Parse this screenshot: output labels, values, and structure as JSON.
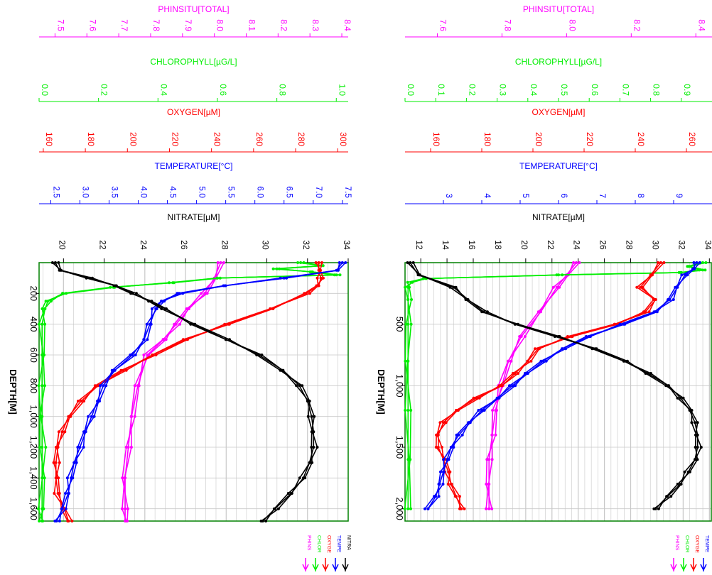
{
  "colors": {
    "phinsitu": "#ff00ff",
    "chlorophyll": "#00ee00",
    "oxygen": "#ff0000",
    "temperature": "#0000ff",
    "nitrate": "#000000",
    "frame": "#008000",
    "grid": "#c8c8c8"
  },
  "chart_data": [
    {
      "type": "line",
      "panel": "left",
      "depth_axis": {
        "label": "DEPTH[M]",
        "range": [
          0,
          1680
        ],
        "ticks": [
          200,
          400,
          600,
          800,
          1000,
          1200,
          1400,
          1600
        ],
        "tick_labels": [
          "200",
          "400",
          "600",
          "800",
          "1,000",
          "1,200",
          "1,400",
          "1,600"
        ],
        "inverted": true
      },
      "scales": [
        {
          "key": "phinsitu",
          "name": "PHINSITU[TOTAL]",
          "range": [
            7.45,
            8.42
          ],
          "ticks": [
            7.5,
            7.6,
            7.7,
            7.8,
            7.9,
            8.0,
            8.1,
            8.2,
            8.3,
            8.4
          ],
          "tick_labels": [
            "7.5",
            "7.6",
            "7.7",
            "7.8",
            "7.9",
            "8.0",
            "8.1",
            "8.2",
            "8.3",
            "8.4"
          ]
        },
        {
          "key": "chlorophyll",
          "name": "CHLOROPHYLL[µG/L]",
          "range": [
            0.0,
            1.04
          ],
          "ticks": [
            0.0,
            0.2,
            0.4,
            0.6,
            0.8,
            1.0
          ],
          "tick_labels": [
            "0.0",
            "0.2",
            "0.4",
            "0.6",
            "0.8",
            "1.0"
          ]
        },
        {
          "key": "oxygen",
          "name": "OXYGEN[µM]",
          "range": [
            158,
            305
          ],
          "ticks": [
            160,
            180,
            200,
            220,
            240,
            260,
            280,
            300
          ],
          "tick_labels": [
            "160",
            "180",
            "200",
            "220",
            "240",
            "260",
            "280",
            "300"
          ]
        },
        {
          "key": "temperature",
          "name": "TEMPERATURE[°C]",
          "range": [
            2.3,
            7.6
          ],
          "ticks": [
            2.5,
            3.0,
            3.5,
            4.0,
            4.5,
            5.0,
            5.5,
            6.0,
            6.5,
            7.0,
            7.5
          ],
          "tick_labels": [
            "2.5",
            "3.0",
            "3.5",
            "4.0",
            "4.5",
            "5.0",
            "5.5",
            "6.0",
            "6.5",
            "7.0",
            "7.5"
          ]
        },
        {
          "key": "nitrate",
          "name": "NITRATE[µM]",
          "range": [
            18.8,
            34
          ],
          "ticks": [
            20,
            22,
            24,
            26,
            28,
            30,
            32,
            34
          ],
          "tick_labels": [
            "20",
            "22",
            "24",
            "26",
            "28",
            "30",
            "32",
            "34"
          ]
        }
      ],
      "series": [
        {
          "key": "phinsitu",
          "name": "PHINS",
          "casts": 3,
          "depth": [
            0,
            100,
            200,
            300,
            400,
            500,
            600,
            800,
            1000,
            1200,
            1400,
            1600,
            1680
          ],
          "values": [
            8.02,
            8.0,
            7.97,
            7.92,
            7.88,
            7.84,
            7.79,
            7.76,
            7.74,
            7.73,
            7.72,
            7.72,
            7.72
          ]
        },
        {
          "key": "chlorophyll",
          "name": "CHLOR",
          "casts": 3,
          "depth": [
            0,
            20,
            40,
            60,
            80,
            100,
            130,
            160,
            200,
            250,
            300,
            400,
            600,
            800,
            1000,
            1200,
            1400,
            1600,
            1680
          ],
          "values": [
            0.88,
            0.95,
            0.8,
            0.92,
            1.0,
            0.6,
            0.45,
            0.25,
            0.08,
            0.03,
            0.02,
            0.01,
            0.01,
            0.01,
            0.01,
            0.01,
            0.01,
            0.01,
            0.01
          ]
        },
        {
          "key": "oxygen",
          "name": "OXYGE",
          "casts": 3,
          "depth": [
            0,
            50,
            100,
            150,
            200,
            300,
            400,
            500,
            600,
            700,
            800,
            900,
            1000,
            1100,
            1200,
            1300,
            1400,
            1500,
            1600,
            1680
          ],
          "values": [
            291,
            291,
            292,
            291,
            285,
            268,
            248,
            228,
            212,
            198,
            186,
            178,
            172,
            169,
            167,
            166,
            166,
            167,
            170,
            172
          ]
        },
        {
          "key": "temperature",
          "name": "TEMPE",
          "casts": 3,
          "depth": [
            0,
            50,
            100,
            150,
            200,
            250,
            300,
            400,
            500,
            600,
            700,
            800,
            900,
            1000,
            1100,
            1200,
            1300,
            1400,
            1500,
            1600,
            1680
          ],
          "values": [
            7.5,
            7.4,
            6.5,
            5.5,
            4.7,
            4.4,
            4.3,
            4.2,
            4.1,
            3.9,
            3.6,
            3.4,
            3.3,
            3.2,
            3.1,
            3.0,
            2.9,
            2.85,
            2.8,
            2.7,
            2.6
          ]
        },
        {
          "key": "nitrate",
          "name": "NITRA",
          "casts": 3,
          "depth": [
            0,
            50,
            100,
            150,
            200,
            250,
            300,
            400,
            500,
            600,
            700,
            800,
            900,
            1000,
            1100,
            1200,
            1300,
            1400,
            1500,
            1600,
            1680
          ],
          "values": [
            19.6,
            19.8,
            21.3,
            22.6,
            23.4,
            24.2,
            25.0,
            26.4,
            28.0,
            29.6,
            30.8,
            31.6,
            32.0,
            32.2,
            32.3,
            32.3,
            32.1,
            31.8,
            31.2,
            30.4,
            29.8
          ]
        }
      ],
      "legend": [
        "PHINS",
        "CHLOR",
        "OXYGE",
        "TEMPE",
        "NITRA"
      ]
    },
    {
      "type": "line",
      "panel": "right",
      "depth_axis": {
        "label": "DEPTH[M]",
        "range": [
          0,
          2100
        ],
        "ticks": [
          500,
          1000,
          1500,
          2000
        ],
        "tick_labels": [
          "500",
          "1,000",
          "1,500",
          "2,000"
        ],
        "inverted": true
      },
      "scales": [
        {
          "key": "phinsitu",
          "name": "PHINSITU[TOTAL]",
          "range": [
            7.5,
            8.45
          ],
          "ticks": [
            7.6,
            7.8,
            8.0,
            8.2,
            8.4
          ],
          "tick_labels": [
            "7.6",
            "7.8",
            "8.0",
            "8.2",
            "8.4"
          ]
        },
        {
          "key": "chlorophyll",
          "name": "CHLOROPHYLL[µG/L]",
          "range": [
            0.0,
            1.0
          ],
          "ticks": [
            0.0,
            0.1,
            0.2,
            0.3,
            0.4,
            0.5,
            0.6,
            0.7,
            0.8,
            0.9
          ],
          "tick_labels": [
            "0.0",
            "0.1",
            "0.2",
            "0.3",
            "0.4",
            "0.5",
            "0.6",
            "0.7",
            "0.8",
            "0.9"
          ]
        },
        {
          "key": "oxygen",
          "name": "OXYGEN[µM]",
          "range": [
            150,
            270
          ],
          "ticks": [
            160,
            180,
            200,
            220,
            240,
            260
          ],
          "tick_labels": [
            "160",
            "180",
            "200",
            "220",
            "240",
            "260"
          ]
        },
        {
          "key": "temperature",
          "name": "TEMPERATURE[°C]",
          "range": [
            2.0,
            10.0
          ],
          "ticks": [
            3,
            4,
            5,
            6,
            7,
            8,
            9
          ],
          "tick_labels": [
            "3",
            "4",
            "5",
            "6",
            "7",
            "8",
            "9"
          ]
        },
        {
          "key": "nitrate",
          "name": "NITRATE[µM]",
          "range": [
            10.8,
            34.2
          ],
          "ticks": [
            12,
            14,
            16,
            18,
            20,
            22,
            24,
            26,
            28,
            30,
            32,
            34
          ],
          "tick_labels": [
            "12",
            "14",
            "16",
            "18",
            "20",
            "22",
            "24",
            "26",
            "28",
            "30",
            "32",
            "34"
          ]
        }
      ],
      "series": [
        {
          "key": "phinsitu",
          "name": "PHINS",
          "casts": 3,
          "depth": [
            0,
            100,
            200,
            400,
            600,
            800,
            1000,
            1200,
            1400,
            1600,
            1800,
            2000
          ],
          "values": [
            8.03,
            8.0,
            7.97,
            7.92,
            7.86,
            7.82,
            7.8,
            7.78,
            7.77,
            7.76,
            7.76,
            7.76
          ]
        },
        {
          "key": "chlorophyll",
          "name": "CHLOR",
          "casts": 3,
          "depth": [
            0,
            30,
            60,
            80,
            100,
            130,
            160,
            200,
            300,
            500,
            800,
            1200,
            1600,
            2000
          ],
          "values": [
            0.97,
            0.92,
            0.97,
            0.9,
            0.5,
            0.06,
            0.02,
            0.01,
            0.01,
            0.01,
            0.01,
            0.01,
            0.01,
            0.01
          ]
        },
        {
          "key": "oxygen",
          "name": "OXYGE",
          "casts": 3,
          "depth": [
            0,
            100,
            200,
            300,
            400,
            500,
            600,
            700,
            800,
            900,
            1000,
            1100,
            1200,
            1300,
            1400,
            1500,
            1600,
            1700,
            1800,
            1900,
            2000
          ],
          "values": [
            250,
            246,
            242,
            248,
            244,
            232,
            215,
            202,
            198,
            193,
            188,
            178,
            170,
            165,
            163,
            163,
            165,
            167,
            168,
            170,
            172
          ]
        },
        {
          "key": "temperature",
          "name": "TEMPE",
          "casts": 3,
          "depth": [
            0,
            50,
            100,
            200,
            300,
            400,
            500,
            600,
            700,
            800,
            900,
            1000,
            1100,
            1200,
            1300,
            1400,
            1500,
            1600,
            1700,
            1800,
            1900,
            2000
          ],
          "values": [
            9.6,
            9.5,
            9.3,
            9.1,
            8.9,
            8.5,
            7.7,
            6.8,
            6.1,
            5.6,
            5.2,
            4.8,
            4.4,
            4.0,
            3.7,
            3.4,
            3.2,
            3.1,
            3.0,
            2.9,
            2.8,
            2.6
          ]
        },
        {
          "key": "nitrate",
          "name": "NITRA",
          "casts": 3,
          "depth": [
            0,
            100,
            200,
            300,
            400,
            500,
            600,
            700,
            800,
            900,
            1000,
            1100,
            1200,
            1300,
            1400,
            1500,
            1600,
            1700,
            1800,
            1900,
            2000
          ],
          "values": [
            11.2,
            11.8,
            14.5,
            15.6,
            16.8,
            19.2,
            22.5,
            25.3,
            27.5,
            29.3,
            30.9,
            31.8,
            32.5,
            32.9,
            33.1,
            33.1,
            32.9,
            32.4,
            31.8,
            30.8,
            29.9
          ]
        }
      ],
      "legend": [
        "PHINS",
        "CHLOR",
        "OXYGE",
        "TEMPE",
        "NITRA"
      ]
    }
  ]
}
